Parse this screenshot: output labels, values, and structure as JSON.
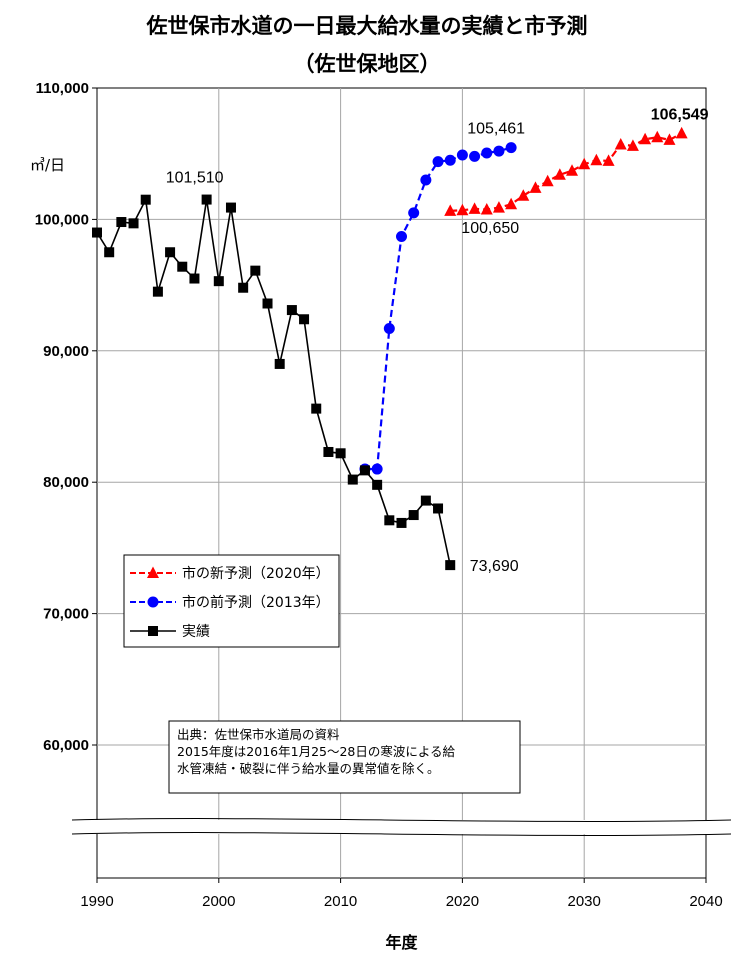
{
  "chart_data": {
    "type": "line",
    "title": "佐世保市水道の一日最大給水量の実績と市予測",
    "subtitle": "（佐世保地区）",
    "ylabel": "㎥/日",
    "xlabel": "年度",
    "xlim": [
      1990,
      2040
    ],
    "ylim": [
      50000,
      110000
    ],
    "y_break": [
      54000,
      60000
    ],
    "x_ticks": [
      "1990",
      "2000",
      "2010",
      "2020",
      "2030",
      "2040"
    ],
    "y_ticks": [
      "60,000",
      "70,000",
      "80,000",
      "90,000",
      "100,000",
      "110,000"
    ],
    "grid": true,
    "legend_position": "middle-left",
    "series": [
      {
        "name": "市の新予測（2020年）",
        "color": "#ff0000",
        "marker": "triangle",
        "line": "dashed",
        "x": [
          2019,
          2020,
          2021,
          2022,
          2023,
          2024,
          2025,
          2026,
          2027,
          2028,
          2029,
          2030,
          2031,
          2032,
          2033,
          2034,
          2035,
          2036,
          2037,
          2038
        ],
        "values": [
          100650,
          100700,
          100800,
          100750,
          100900,
          101150,
          101800,
          102400,
          102900,
          103400,
          103700,
          104200,
          104500,
          104450,
          105700,
          105600,
          106100,
          106250,
          106050,
          106549
        ]
      },
      {
        "name": "市の前予測（2013年）",
        "color": "#0000ff",
        "marker": "circle",
        "line": "dashed",
        "x": [
          2012,
          2013,
          2014,
          2015,
          2016,
          2017,
          2018,
          2019,
          2020,
          2021,
          2022,
          2023,
          2024
        ],
        "values": [
          81000,
          81000,
          91700,
          98700,
          100500,
          103000,
          104400,
          104500,
          104900,
          104800,
          105050,
          105200,
          105461
        ]
      },
      {
        "name": "実績",
        "color": "#000000",
        "marker": "square",
        "line": "solid",
        "x": [
          1990,
          1991,
          1992,
          1993,
          1994,
          1995,
          1996,
          1997,
          1998,
          1999,
          2000,
          2001,
          2002,
          2003,
          2004,
          2005,
          2006,
          2007,
          2008,
          2009,
          2010,
          2011,
          2012,
          2013,
          2014,
          2015,
          2016,
          2017,
          2018,
          2019
        ],
        "values": [
          99000,
          97500,
          99800,
          99700,
          101500,
          94500,
          97500,
          96400,
          95500,
          101510,
          95300,
          100900,
          94800,
          96100,
          93600,
          89000,
          93100,
          92400,
          85600,
          82300,
          82200,
          80200,
          80900,
          79800,
          77100,
          76900,
          77500,
          78600,
          78000,
          73690
        ]
      }
    ],
    "annotations": [
      {
        "text": "101,510",
        "series": 2,
        "index": 9
      },
      {
        "text": "100,650",
        "series": 0,
        "index": 0
      },
      {
        "text": "105,461",
        "series": 1,
        "index": 12
      },
      {
        "text": "106,549",
        "series": 0,
        "index": 19
      },
      {
        "text": "73,690",
        "series": 2,
        "index": 29
      }
    ],
    "note": {
      "line1": "出典：佐世保市水道局の資料",
      "line2": "2015年度は2016年1月25～28日の寒波による給",
      "line3": "水管凍結・破裂に伴う給水量の異常値を除く。"
    }
  }
}
